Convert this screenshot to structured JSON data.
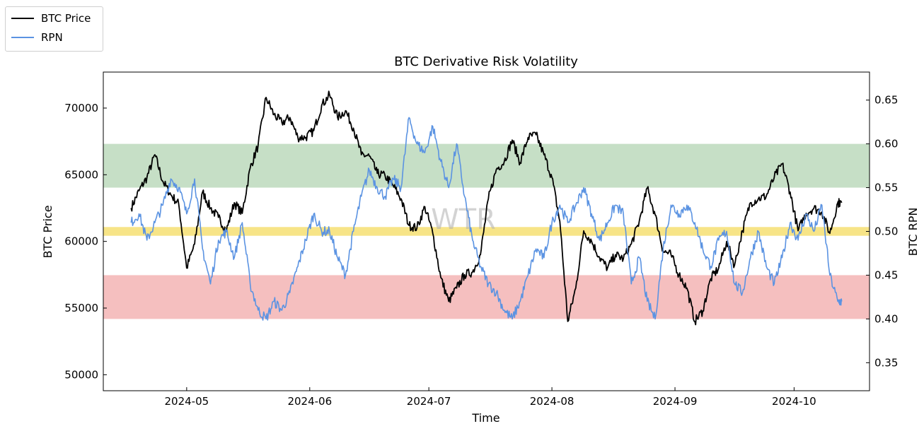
{
  "chart_data": {
    "type": "line",
    "title": "BTC Derivative Risk Volatility",
    "xlabel": "Time",
    "ylabel": "BTC Price",
    "y2label": "BTC RPN",
    "watermark": "WTR",
    "x_tick_labels": [
      "2024-05",
      "2024-06",
      "2024-07",
      "2024-08",
      "2024-09",
      "2024-10"
    ],
    "x_range": [
      "2024-04-10",
      "2024-10-20"
    ],
    "ylim": [
      48800,
      72700
    ],
    "y_ticks": [
      50000,
      55000,
      60000,
      65000,
      70000
    ],
    "y2lim": [
      0.318,
      0.682
    ],
    "y2_ticks": [
      0.35,
      0.4,
      0.45,
      0.5,
      0.55,
      0.6,
      0.65
    ],
    "legend": {
      "placement": "top-left",
      "entries": [
        "BTC Price",
        "RPN"
      ]
    },
    "bands": [
      {
        "axis": "y2",
        "from": 0.55,
        "to": 0.6,
        "color": "#c6dfc6"
      },
      {
        "axis": "y2",
        "from": 0.495,
        "to": 0.505,
        "color": "#f7e487"
      },
      {
        "axis": "y2",
        "from": 0.4,
        "to": 0.45,
        "color": "#f5bfbf"
      }
    ],
    "series": [
      {
        "name": "BTC Price",
        "axis": "y",
        "color": "#000000",
        "points": [
          [
            "2024-04-17",
            62500
          ],
          [
            "2024-04-19",
            63800
          ],
          [
            "2024-04-21",
            64800
          ],
          [
            "2024-04-23",
            66500
          ],
          [
            "2024-04-25",
            64500
          ],
          [
            "2024-04-27",
            63500
          ],
          [
            "2024-04-29",
            62800
          ],
          [
            "2024-05-01",
            58000
          ],
          [
            "2024-05-03",
            59800
          ],
          [
            "2024-05-05",
            63700
          ],
          [
            "2024-05-07",
            62500
          ],
          [
            "2024-05-09",
            61800
          ],
          [
            "2024-05-11",
            60800
          ],
          [
            "2024-05-13",
            62900
          ],
          [
            "2024-05-15",
            62100
          ],
          [
            "2024-05-17",
            65500
          ],
          [
            "2024-05-19",
            67200
          ],
          [
            "2024-05-21",
            70800
          ],
          [
            "2024-05-23",
            69500
          ],
          [
            "2024-05-25",
            68900
          ],
          [
            "2024-05-27",
            69300
          ],
          [
            "2024-05-29",
            67800
          ],
          [
            "2024-05-31",
            67800
          ],
          [
            "2024-06-02",
            68300
          ],
          [
            "2024-06-04",
            70200
          ],
          [
            "2024-06-06",
            71000
          ],
          [
            "2024-06-08",
            69300
          ],
          [
            "2024-06-10",
            69800
          ],
          [
            "2024-06-12",
            68500
          ],
          [
            "2024-06-14",
            66500
          ],
          [
            "2024-06-16",
            66400
          ],
          [
            "2024-06-18",
            65100
          ],
          [
            "2024-06-20",
            64900
          ],
          [
            "2024-06-22",
            64200
          ],
          [
            "2024-06-24",
            63200
          ],
          [
            "2024-06-26",
            61200
          ],
          [
            "2024-06-28",
            61000
          ],
          [
            "2024-06-30",
            62600
          ],
          [
            "2024-07-02",
            60600
          ],
          [
            "2024-07-04",
            57300
          ],
          [
            "2024-07-06",
            55500
          ],
          [
            "2024-07-08",
            56500
          ],
          [
            "2024-07-10",
            57500
          ],
          [
            "2024-07-12",
            57700
          ],
          [
            "2024-07-14",
            59000
          ],
          [
            "2024-07-16",
            63200
          ],
          [
            "2024-07-18",
            65400
          ],
          [
            "2024-07-20",
            66000
          ],
          [
            "2024-07-22",
            67600
          ],
          [
            "2024-07-24",
            65900
          ],
          [
            "2024-07-26",
            67800
          ],
          [
            "2024-07-28",
            68000
          ],
          [
            "2024-07-30",
            66500
          ],
          [
            "2024-08-01",
            64800
          ],
          [
            "2024-08-03",
            61500
          ],
          [
            "2024-08-05",
            54000
          ],
          [
            "2024-08-07",
            56500
          ],
          [
            "2024-08-09",
            60800
          ],
          [
            "2024-08-11",
            60000
          ],
          [
            "2024-08-13",
            58800
          ],
          [
            "2024-08-15",
            58000
          ],
          [
            "2024-08-17",
            59000
          ],
          [
            "2024-08-19",
            58700
          ],
          [
            "2024-08-21",
            59800
          ],
          [
            "2024-08-23",
            61500
          ],
          [
            "2024-08-25",
            64000
          ],
          [
            "2024-08-27",
            62000
          ],
          [
            "2024-08-29",
            59300
          ],
          [
            "2024-08-31",
            59000
          ],
          [
            "2024-09-02",
            57500
          ],
          [
            "2024-09-04",
            56500
          ],
          [
            "2024-09-06",
            54000
          ],
          [
            "2024-09-08",
            54800
          ],
          [
            "2024-09-10",
            57200
          ],
          [
            "2024-09-12",
            58000
          ],
          [
            "2024-09-14",
            60000
          ],
          [
            "2024-09-16",
            58200
          ],
          [
            "2024-09-18",
            60800
          ],
          [
            "2024-09-20",
            62900
          ],
          [
            "2024-09-22",
            63200
          ],
          [
            "2024-09-24",
            63400
          ],
          [
            "2024-09-26",
            64800
          ],
          [
            "2024-09-28",
            65800
          ],
          [
            "2024-09-30",
            63700
          ],
          [
            "2024-10-02",
            60800
          ],
          [
            "2024-10-04",
            62100
          ],
          [
            "2024-10-06",
            62500
          ],
          [
            "2024-10-08",
            62200
          ],
          [
            "2024-10-10",
            60600
          ],
          [
            "2024-10-12",
            62900
          ],
          [
            "2024-10-13",
            62900
          ]
        ]
      },
      {
        "name": "RPN",
        "axis": "y2",
        "color": "#5b93e2",
        "points": [
          [
            "2024-04-17",
            0.51
          ],
          [
            "2024-04-19",
            0.52
          ],
          [
            "2024-04-21",
            0.49
          ],
          [
            "2024-04-23",
            0.51
          ],
          [
            "2024-04-25",
            0.53
          ],
          [
            "2024-04-27",
            0.56
          ],
          [
            "2024-04-29",
            0.55
          ],
          [
            "2024-05-01",
            0.52
          ],
          [
            "2024-05-03",
            0.56
          ],
          [
            "2024-05-05",
            0.48
          ],
          [
            "2024-05-07",
            0.44
          ],
          [
            "2024-05-09",
            0.49
          ],
          [
            "2024-05-11",
            0.5
          ],
          [
            "2024-05-13",
            0.47
          ],
          [
            "2024-05-15",
            0.51
          ],
          [
            "2024-05-17",
            0.44
          ],
          [
            "2024-05-19",
            0.41
          ],
          [
            "2024-05-21",
            0.4
          ],
          [
            "2024-05-23",
            0.42
          ],
          [
            "2024-05-25",
            0.41
          ],
          [
            "2024-05-27",
            0.43
          ],
          [
            "2024-05-29",
            0.46
          ],
          [
            "2024-05-31",
            0.49
          ],
          [
            "2024-06-02",
            0.52
          ],
          [
            "2024-06-04",
            0.5
          ],
          [
            "2024-06-06",
            0.5
          ],
          [
            "2024-06-08",
            0.47
          ],
          [
            "2024-06-10",
            0.45
          ],
          [
            "2024-06-12",
            0.5
          ],
          [
            "2024-06-14",
            0.54
          ],
          [
            "2024-06-16",
            0.57
          ],
          [
            "2024-06-18",
            0.55
          ],
          [
            "2024-06-20",
            0.54
          ],
          [
            "2024-06-22",
            0.56
          ],
          [
            "2024-06-24",
            0.55
          ],
          [
            "2024-06-26",
            0.63
          ],
          [
            "2024-06-28",
            0.6
          ],
          [
            "2024-06-30",
            0.59
          ],
          [
            "2024-07-02",
            0.62
          ],
          [
            "2024-07-04",
            0.58
          ],
          [
            "2024-07-06",
            0.55
          ],
          [
            "2024-07-08",
            0.6
          ],
          [
            "2024-07-10",
            0.54
          ],
          [
            "2024-07-12",
            0.49
          ],
          [
            "2024-07-14",
            0.46
          ],
          [
            "2024-07-16",
            0.44
          ],
          [
            "2024-07-18",
            0.43
          ],
          [
            "2024-07-20",
            0.41
          ],
          [
            "2024-07-22",
            0.4
          ],
          [
            "2024-07-24",
            0.42
          ],
          [
            "2024-07-26",
            0.45
          ],
          [
            "2024-07-28",
            0.48
          ],
          [
            "2024-07-30",
            0.47
          ],
          [
            "2024-08-01",
            0.51
          ],
          [
            "2024-08-03",
            0.53
          ],
          [
            "2024-08-05",
            0.51
          ],
          [
            "2024-08-07",
            0.53
          ],
          [
            "2024-08-09",
            0.55
          ],
          [
            "2024-08-11",
            0.52
          ],
          [
            "2024-08-13",
            0.49
          ],
          [
            "2024-08-15",
            0.51
          ],
          [
            "2024-08-17",
            0.53
          ],
          [
            "2024-08-19",
            0.52
          ],
          [
            "2024-08-21",
            0.44
          ],
          [
            "2024-08-23",
            0.47
          ],
          [
            "2024-08-25",
            0.42
          ],
          [
            "2024-08-27",
            0.4
          ],
          [
            "2024-08-29",
            0.48
          ],
          [
            "2024-08-31",
            0.53
          ],
          [
            "2024-09-02",
            0.52
          ],
          [
            "2024-09-04",
            0.53
          ],
          [
            "2024-09-06",
            0.51
          ],
          [
            "2024-09-08",
            0.48
          ],
          [
            "2024-09-10",
            0.46
          ],
          [
            "2024-09-12",
            0.49
          ],
          [
            "2024-09-14",
            0.5
          ],
          [
            "2024-09-16",
            0.44
          ],
          [
            "2024-09-18",
            0.43
          ],
          [
            "2024-09-20",
            0.47
          ],
          [
            "2024-09-22",
            0.5
          ],
          [
            "2024-09-24",
            0.46
          ],
          [
            "2024-09-26",
            0.44
          ],
          [
            "2024-09-28",
            0.47
          ],
          [
            "2024-09-30",
            0.51
          ],
          [
            "2024-10-02",
            0.49
          ],
          [
            "2024-10-04",
            0.52
          ],
          [
            "2024-10-06",
            0.5
          ],
          [
            "2024-10-08",
            0.53
          ],
          [
            "2024-10-10",
            0.45
          ],
          [
            "2024-10-12",
            0.42
          ],
          [
            "2024-10-13",
            0.42
          ]
        ]
      }
    ]
  }
}
